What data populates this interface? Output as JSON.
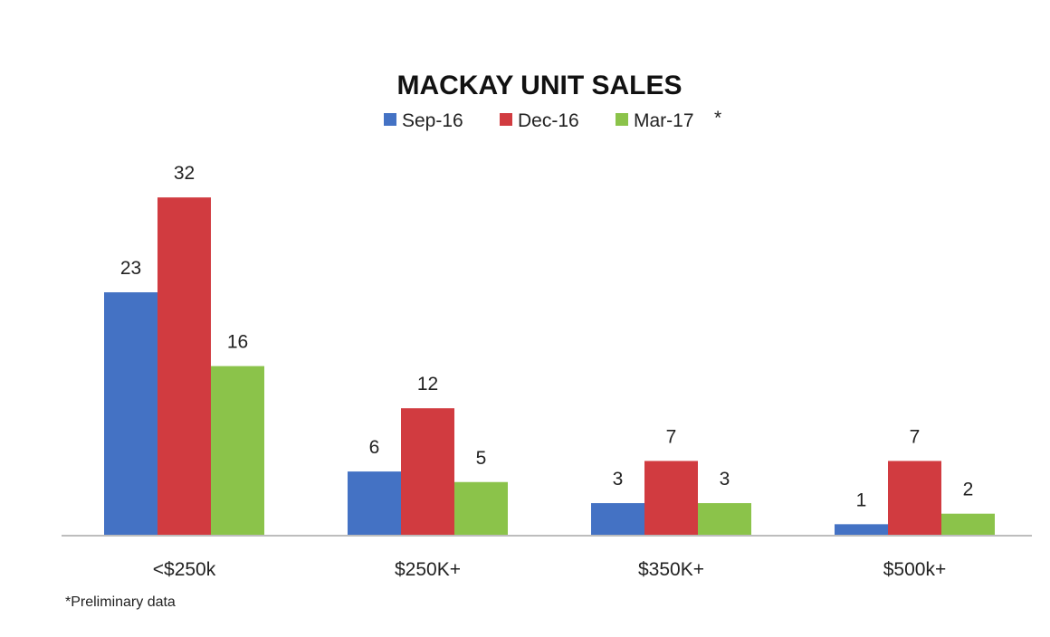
{
  "chart_data": {
    "type": "bar",
    "title": "MACKAY UNIT SALES",
    "categories": [
      "<$250k",
      "$250K+",
      "$350K+",
      "$500k+"
    ],
    "series": [
      {
        "name": "Sep-16",
        "color": "#4472C4",
        "values": [
          23,
          6,
          3,
          1
        ]
      },
      {
        "name": "Dec-16",
        "color": "#D13B40",
        "values": [
          32,
          12,
          7,
          7
        ]
      },
      {
        "name": "Mar-17",
        "color": "#8BC34A",
        "values": [
          16,
          5,
          3,
          2
        ]
      }
    ],
    "legend_suffix": "*",
    "legend_position": "top",
    "ylim": [
      0,
      32
    ],
    "grid": false,
    "data_labels": true,
    "footnote": "*Preliminary data"
  }
}
